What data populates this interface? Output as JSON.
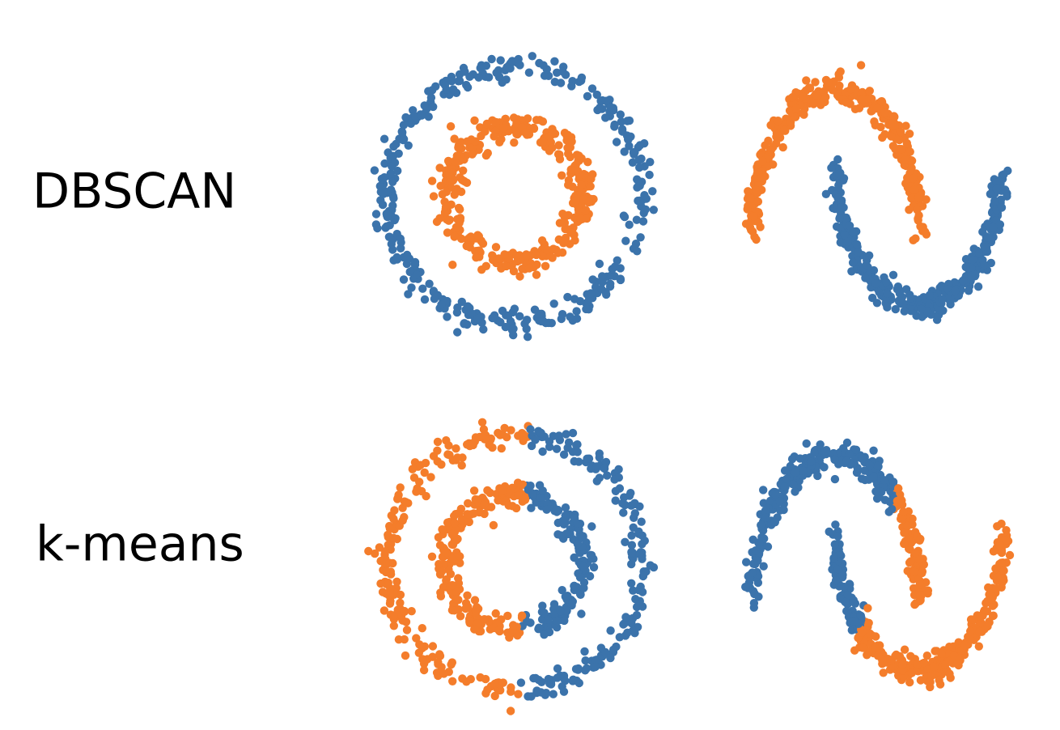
{
  "rows": [
    {
      "label": "DBSCAN"
    },
    {
      "label": "k-means"
    }
  ],
  "colors": {
    "blue": "#3b73ab",
    "orange": "#f47d2b"
  }
}
